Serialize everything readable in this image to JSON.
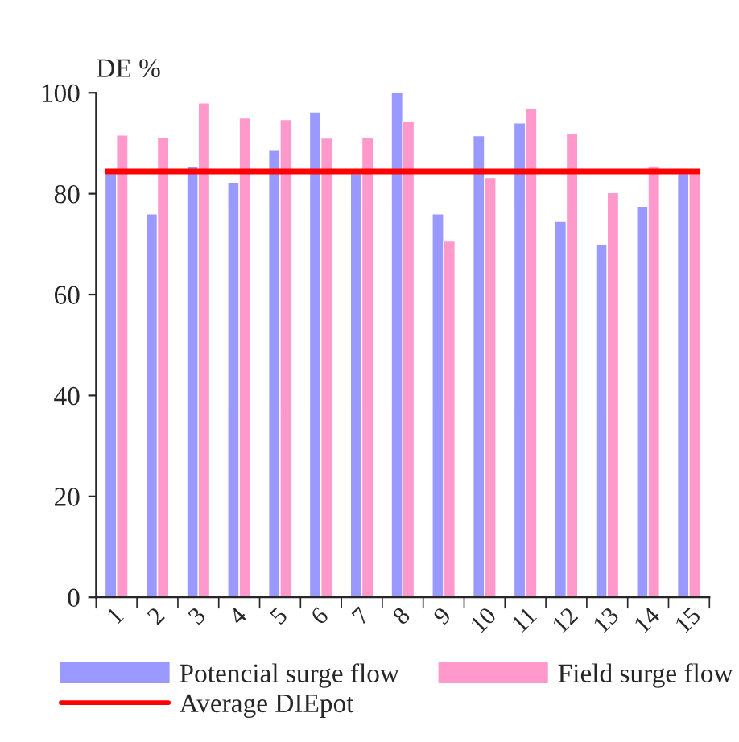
{
  "chart_data": {
    "type": "bar",
    "ylabel": "DE %",
    "categories": [
      "1",
      "2",
      "3",
      "4",
      "5",
      "6",
      "7",
      "8",
      "9",
      "10",
      "11",
      "12",
      "13",
      "14",
      "15"
    ],
    "series": [
      {
        "name": "Potencial surge flow",
        "color": "#9999ff",
        "values": [
          84,
          76,
          85.3,
          82.3,
          88.6,
          96.2,
          84,
          100,
          76,
          91.5,
          94,
          74.5,
          70,
          77.5,
          84
        ]
      },
      {
        "name": "Field surge flow",
        "color": "#ff99cc",
        "values": [
          91.6,
          91.2,
          98,
          95,
          94.7,
          91,
          91.2,
          94.4,
          70.6,
          83.2,
          96.9,
          91.9,
          80.2,
          85.5,
          84
        ]
      }
    ],
    "ref_lines": [
      {
        "axis": "y",
        "value": 84.4,
        "label": "Average DIEpot",
        "color": "#ff0000",
        "line_style": "solid"
      }
    ],
    "ylim": [
      0,
      100
    ],
    "yticks": [
      0,
      20,
      40,
      60,
      80,
      100
    ],
    "grid": false,
    "legend": "bottom"
  }
}
